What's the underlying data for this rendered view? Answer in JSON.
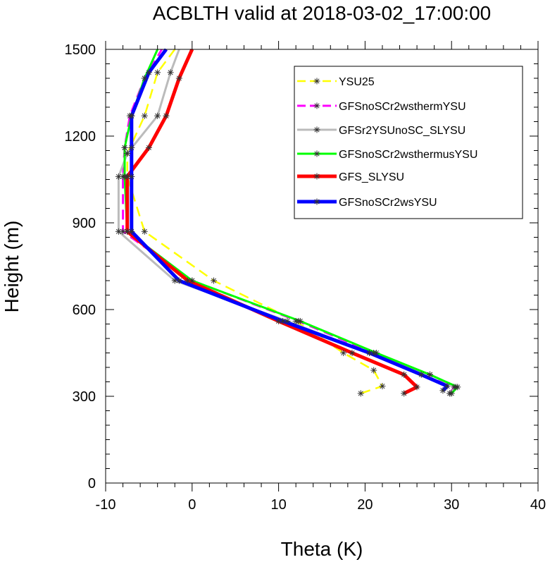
{
  "chart_data": {
    "type": "line",
    "title": "ACBLTH valid at 2018-03-02_17:00:00",
    "xlabel": "Theta (K)",
    "ylabel": "Height (m)",
    "xlim": [
      -10,
      40
    ],
    "ylim": [
      0,
      1500
    ],
    "xticks": [
      -10,
      0,
      10,
      20,
      30,
      40
    ],
    "yticks": [
      0,
      300,
      600,
      900,
      1200,
      1500
    ],
    "legend_position": "top-right",
    "series": [
      {
        "name": "YSU25",
        "color": "#ffff00",
        "dashed": true,
        "x": [
          19.5,
          22.0,
          21.0,
          17.5,
          12.0,
          2.5,
          -5.5,
          -7.5,
          -7.5,
          -5.5,
          -4.0,
          -2.0
        ],
        "y": [
          310,
          335,
          390,
          450,
          560,
          700,
          870,
          1060,
          1140,
          1270,
          1420,
          1500
        ]
      },
      {
        "name": "GFSnoSCr2wsthermYSU",
        "color": "#ff00ff",
        "dashed": true,
        "x": [
          29.8,
          30.3,
          27.5,
          21.0,
          12.3,
          0.0,
          -8.0,
          -8.0,
          -7.8,
          -7.2,
          -5.5,
          -3.5
        ],
        "y": [
          310,
          332,
          375,
          450,
          560,
          700,
          870,
          1060,
          1160,
          1270,
          1400,
          1500
        ]
      },
      {
        "name": "GFSr2YSUnoSC_SLYSU",
        "color": "#bbbbbb",
        "dashed": false,
        "x": [
          29.8,
          30.5,
          27.5,
          20.5,
          11.0,
          -2.0,
          -8.5,
          -8.5,
          -7.5,
          -4.0,
          -2.5,
          -1.5
        ],
        "y": [
          310,
          332,
          375,
          450,
          560,
          700,
          870,
          1060,
          1140,
          1270,
          1420,
          1500
        ]
      },
      {
        "name": "GFSnoSCr2wsthermusYSU",
        "color": "#00ff00",
        "dashed": false,
        "x": [
          30.0,
          30.7,
          27.5,
          21.3,
          12.5,
          0.0,
          -7.5,
          -7.8,
          -7.8,
          -7.0,
          -5.5,
          -4.0
        ],
        "y": [
          310,
          332,
          375,
          450,
          560,
          700,
          870,
          1060,
          1160,
          1270,
          1400,
          1500
        ]
      },
      {
        "name": "GFS_SLYSU",
        "color": "#ff0000",
        "dashed": false,
        "x": [
          24.5,
          26.0,
          24.5,
          18.5,
          10.0,
          -0.5,
          -7.5,
          -7.5,
          -5.0,
          -3.0,
          -1.5,
          0.0
        ],
        "y": [
          310,
          332,
          375,
          450,
          560,
          700,
          870,
          1060,
          1160,
          1270,
          1400,
          1500
        ]
      },
      {
        "name": "GFSnoSCr2wsYSU",
        "color": "#0000ff",
        "dashed": false,
        "x": [
          29.0,
          29.5,
          26.5,
          20.5,
          10.5,
          -1.5,
          -7.0,
          -7.0,
          -7.0,
          -7.0,
          -5.0,
          -3.0
        ],
        "y": [
          320,
          335,
          375,
          450,
          560,
          700,
          870,
          1060,
          1160,
          1270,
          1420,
          1500
        ]
      }
    ]
  }
}
